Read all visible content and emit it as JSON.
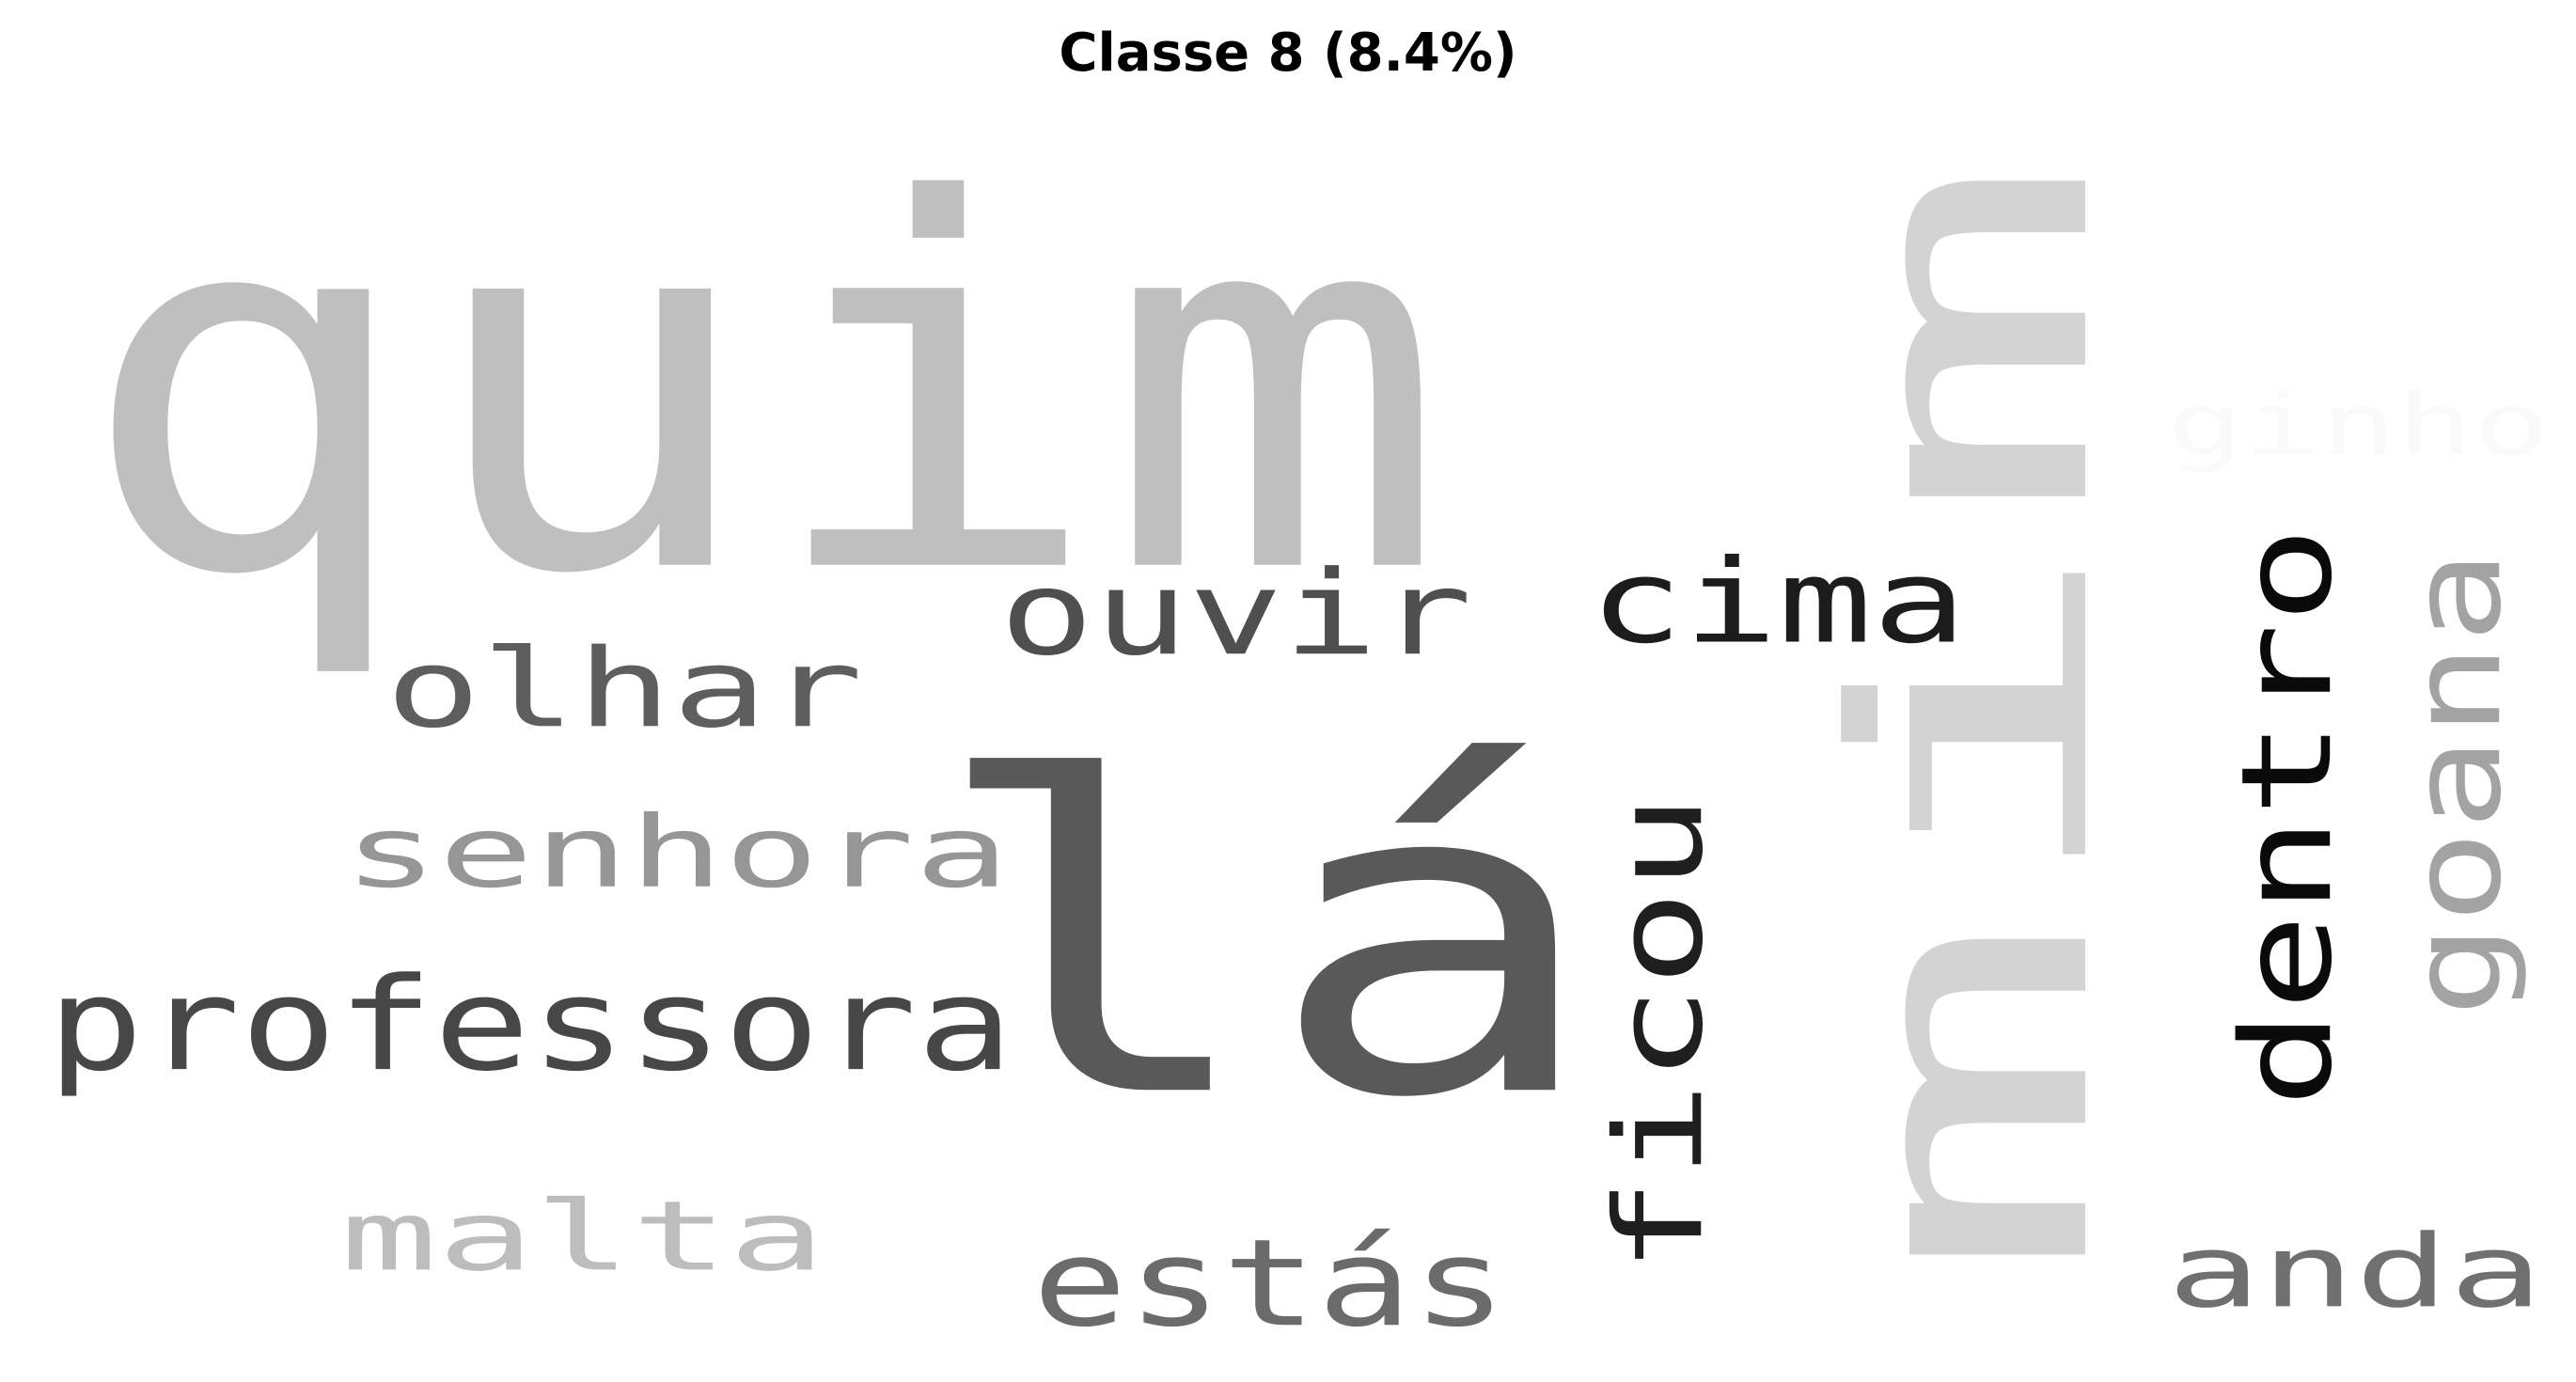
{
  "chart_data": {
    "type": "wordcloud",
    "title": "Classe 8 (8.4%)",
    "words": [
      {
        "text": "quim",
        "color": "#bfbfbf",
        "rotated": false
      },
      {
        "text": "mim",
        "color": "#d3d3d3",
        "rotated": true
      },
      {
        "text": "lá",
        "color": "#595959",
        "rotated": false
      },
      {
        "text": "ginho",
        "color": "#fafafa",
        "rotated": false
      },
      {
        "text": "ouvir",
        "color": "#4f4f4f",
        "rotated": false
      },
      {
        "text": "cima",
        "color": "#1c1c1c",
        "rotated": false
      },
      {
        "text": "olhar",
        "color": "#5e5e5e",
        "rotated": false
      },
      {
        "text": "senhora",
        "color": "#969696",
        "rotated": false
      },
      {
        "text": "professora",
        "color": "#474747",
        "rotated": false
      },
      {
        "text": "ficou",
        "color": "#1f1f1f",
        "rotated": true
      },
      {
        "text": "dentro",
        "color": "#0a0a0a",
        "rotated": true
      },
      {
        "text": "goana",
        "color": "#a3a3a3",
        "rotated": true
      },
      {
        "text": "malta",
        "color": "#bdbdbd",
        "rotated": false
      },
      {
        "text": "estás",
        "color": "#6b6b6b",
        "rotated": false
      },
      {
        "text": "anda",
        "color": "#707070",
        "rotated": false
      }
    ]
  }
}
